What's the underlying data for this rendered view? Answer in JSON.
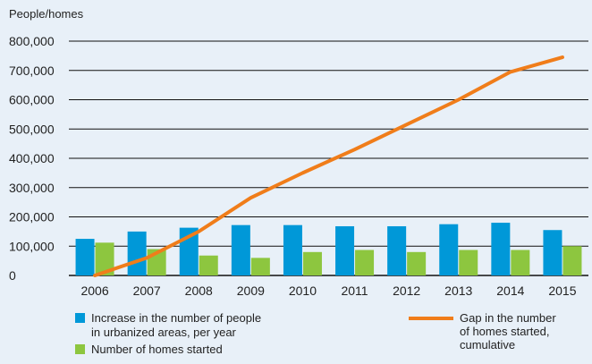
{
  "chart_data": {
    "type": "bar",
    "ylabel": "People/homes",
    "ylim": [
      0,
      800000
    ],
    "yticks": [
      0,
      100000,
      200000,
      300000,
      400000,
      500000,
      600000,
      700000,
      800000
    ],
    "ytick_labels": [
      "0",
      "100,000",
      "200,000",
      "300,000",
      "400,000",
      "500,000",
      "600,000",
      "700,000",
      "800,000"
    ],
    "grid": true,
    "legend_position": "bottom",
    "categories": [
      "2006",
      "2007",
      "2008",
      "2009",
      "2010",
      "2011",
      "2012",
      "2013",
      "2014",
      "2015"
    ],
    "series": [
      {
        "name": "Increase in the number of people in urbanized areas, per year",
        "legend_lines": [
          "Increase in the number of people",
          "in urbanized areas, per year"
        ],
        "kind": "bar",
        "color": "#0098d8",
        "values": [
          125000,
          150000,
          163000,
          172000,
          172000,
          168000,
          168000,
          175000,
          180000,
          155000
        ]
      },
      {
        "name": "Number of homes started",
        "legend_lines": [
          "Number of homes started"
        ],
        "kind": "bar",
        "color": "#8dc63f",
        "values": [
          112000,
          90000,
          68000,
          60000,
          80000,
          87000,
          80000,
          87000,
          87000,
          100000
        ]
      },
      {
        "name": "Gap in the number of homes started, cumulative",
        "legend_lines": [
          "Gap in the number",
          "of homes started,",
          "cumulative"
        ],
        "kind": "line",
        "color": "#f07d1a",
        "values": [
          0,
          60000,
          150000,
          265000,
          350000,
          430000,
          515000,
          600000,
          695000,
          745000
        ]
      }
    ]
  }
}
